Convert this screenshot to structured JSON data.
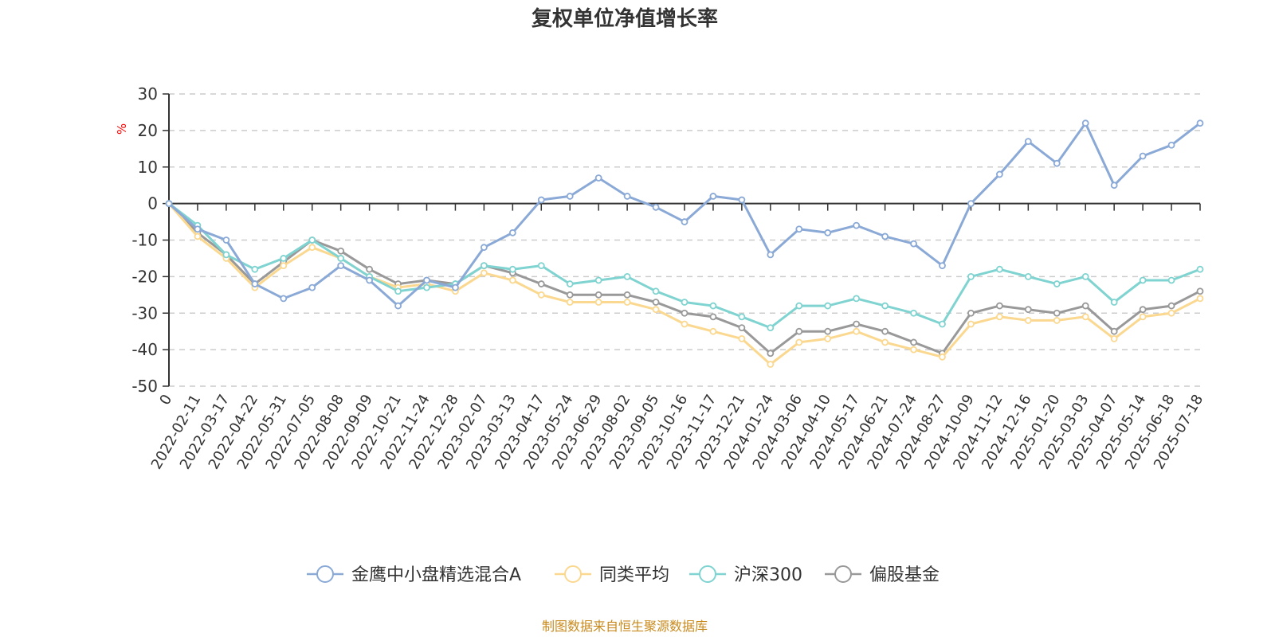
{
  "colors": {
    "series": [
      "#8aa9d6",
      "#fbd890",
      "#7fd3d0",
      "#999999"
    ],
    "source": "#c98a1d",
    "unit": "#ff0000"
  },
  "chart_data": {
    "type": "line",
    "title": "复权单位净值增长率",
    "ylabel": "%",
    "ylim": [
      -50,
      30
    ],
    "yticks": [
      30,
      20,
      10,
      0,
      -10,
      -20,
      -30,
      -40,
      -50
    ],
    "grid": true,
    "legend_position": "bottom",
    "x_tick_labels": [
      "0",
      "2022-02-11",
      "2022-03-17",
      "2022-04-22",
      "2022-05-31",
      "2022-07-05",
      "2022-08-08",
      "2022-09-09",
      "2022-10-21",
      "2022-11-24",
      "2022-12-28",
      "2023-02-07",
      "2023-03-13",
      "2023-04-17",
      "2023-05-24",
      "2023-06-29",
      "2023-08-02",
      "2023-09-05",
      "2023-10-16",
      "2023-11-17",
      "2023-12-21",
      "2024-01-24",
      "2024-03-06",
      "2024-04-10",
      "2024-05-17",
      "2024-06-21",
      "2024-07-24",
      "2024-08-27",
      "2024-10-09",
      "2024-11-12",
      "2024-12-16",
      "2025-01-20",
      "2025-03-03",
      "2025-04-07",
      "2025-05-14",
      "2025-06-18",
      "2025-07-18"
    ],
    "x": [
      "0",
      "2022-02-11",
      "2022-03-17",
      "2022-04-22",
      "2022-05-31",
      "2022-07-05",
      "2022-08-08",
      "2022-09-09",
      "2022-10-21",
      "2022-11-24",
      "2022-12-28",
      "2023-02-07",
      "2023-03-13",
      "2023-04-17",
      "2023-05-24",
      "2023-06-29",
      "2023-08-02",
      "2023-09-05",
      "2023-10-16",
      "2023-11-17",
      "2023-12-21",
      "2024-01-24",
      "2024-03-06",
      "2024-04-10",
      "2024-05-17",
      "2024-06-21",
      "2024-07-24",
      "2024-08-27",
      "2024-10-09",
      "2024-11-12",
      "2024-12-16",
      "2025-01-20",
      "2025-03-03",
      "2025-04-07",
      "2025-05-14",
      "2025-06-18",
      "2025-07-18"
    ],
    "series": [
      {
        "name": "金鹰中小盘精选混合A",
        "values": [
          0,
          -7,
          -10,
          -22,
          -26,
          -23,
          -17,
          -21,
          -28,
          -21,
          -23,
          -12,
          -8,
          1,
          2,
          7,
          2,
          -1,
          -5,
          2,
          1,
          -14,
          -7,
          -8,
          -6,
          -9,
          -11,
          -17,
          0,
          8,
          17,
          11,
          22,
          5,
          13,
          16,
          22
        ]
      },
      {
        "name": "同类平均",
        "values": [
          0,
          -9,
          -15,
          -23,
          -17,
          -12,
          -15,
          -20,
          -23,
          -22,
          -24,
          -19,
          -21,
          -25,
          -27,
          -27,
          -27,
          -29,
          -33,
          -35,
          -37,
          -44,
          -38,
          -37,
          -35,
          -38,
          -40,
          -42,
          -33,
          -31,
          -32,
          -32,
          -31,
          -37,
          -31,
          -30,
          -26
        ]
      },
      {
        "name": "沪深300",
        "values": [
          0,
          -6,
          -14,
          -18,
          -15,
          -10,
          -15,
          -20,
          -24,
          -23,
          -22,
          -17,
          -18,
          -17,
          -22,
          -21,
          -20,
          -24,
          -27,
          -28,
          -31,
          -34,
          -28,
          -28,
          -26,
          -28,
          -30,
          -33,
          -20,
          -18,
          -20,
          -22,
          -20,
          -27,
          -21,
          -21,
          -18
        ]
      },
      {
        "name": "偏股基金",
        "values": [
          0,
          -8,
          -14,
          -22,
          -16,
          -10,
          -13,
          -18,
          -22,
          -21,
          -22,
          -17,
          -19,
          -22,
          -25,
          -25,
          -25,
          -27,
          -30,
          -31,
          -34,
          -41,
          -35,
          -35,
          -33,
          -35,
          -38,
          -41,
          -30,
          -28,
          -29,
          -30,
          -28,
          -35,
          -29,
          -28,
          -24
        ]
      }
    ]
  },
  "legend": {
    "items": [
      "金鹰中小盘精选混合A",
      "同类平均",
      "沪深300",
      "偏股基金"
    ]
  },
  "source_text": "制图数据来自恒生聚源数据库"
}
